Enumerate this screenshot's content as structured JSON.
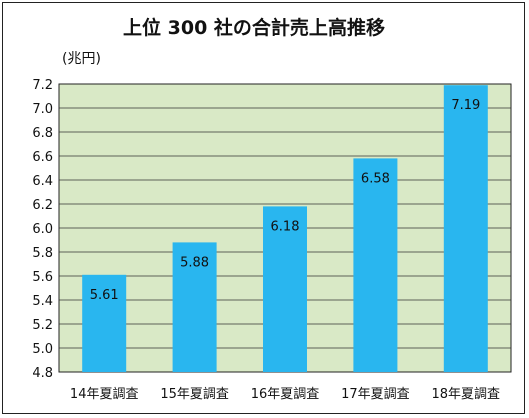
{
  "chart_data": {
    "type": "bar",
    "title": "上位 300 社の合計売上高推移",
    "unit_label": "(兆円)",
    "categories": [
      "14年夏調査",
      "15年夏調査",
      "16年夏調査",
      "17年夏調査",
      "18年夏調査"
    ],
    "values": [
      5.61,
      5.88,
      6.18,
      6.58,
      7.19
    ],
    "value_labels": [
      "5.61",
      "5.88",
      "6.18",
      "6.58",
      "7.19"
    ],
    "ylim": [
      4.8,
      7.2
    ],
    "ytick_values": [
      4.8,
      5.0,
      5.2,
      5.4,
      5.6,
      5.8,
      6.0,
      6.2,
      6.4,
      6.6,
      6.8,
      7.0,
      7.2
    ],
    "yticks": [
      "4.8",
      "5.0",
      "5.2",
      "5.4",
      "5.6",
      "5.8",
      "6.0",
      "6.2",
      "6.4",
      "6.6",
      "6.8",
      "7.0",
      "7.2"
    ],
    "grid": true,
    "colors": {
      "bar": "#29b6ef",
      "plot_bg": "#d9e9c6",
      "grid": "#333333"
    }
  }
}
